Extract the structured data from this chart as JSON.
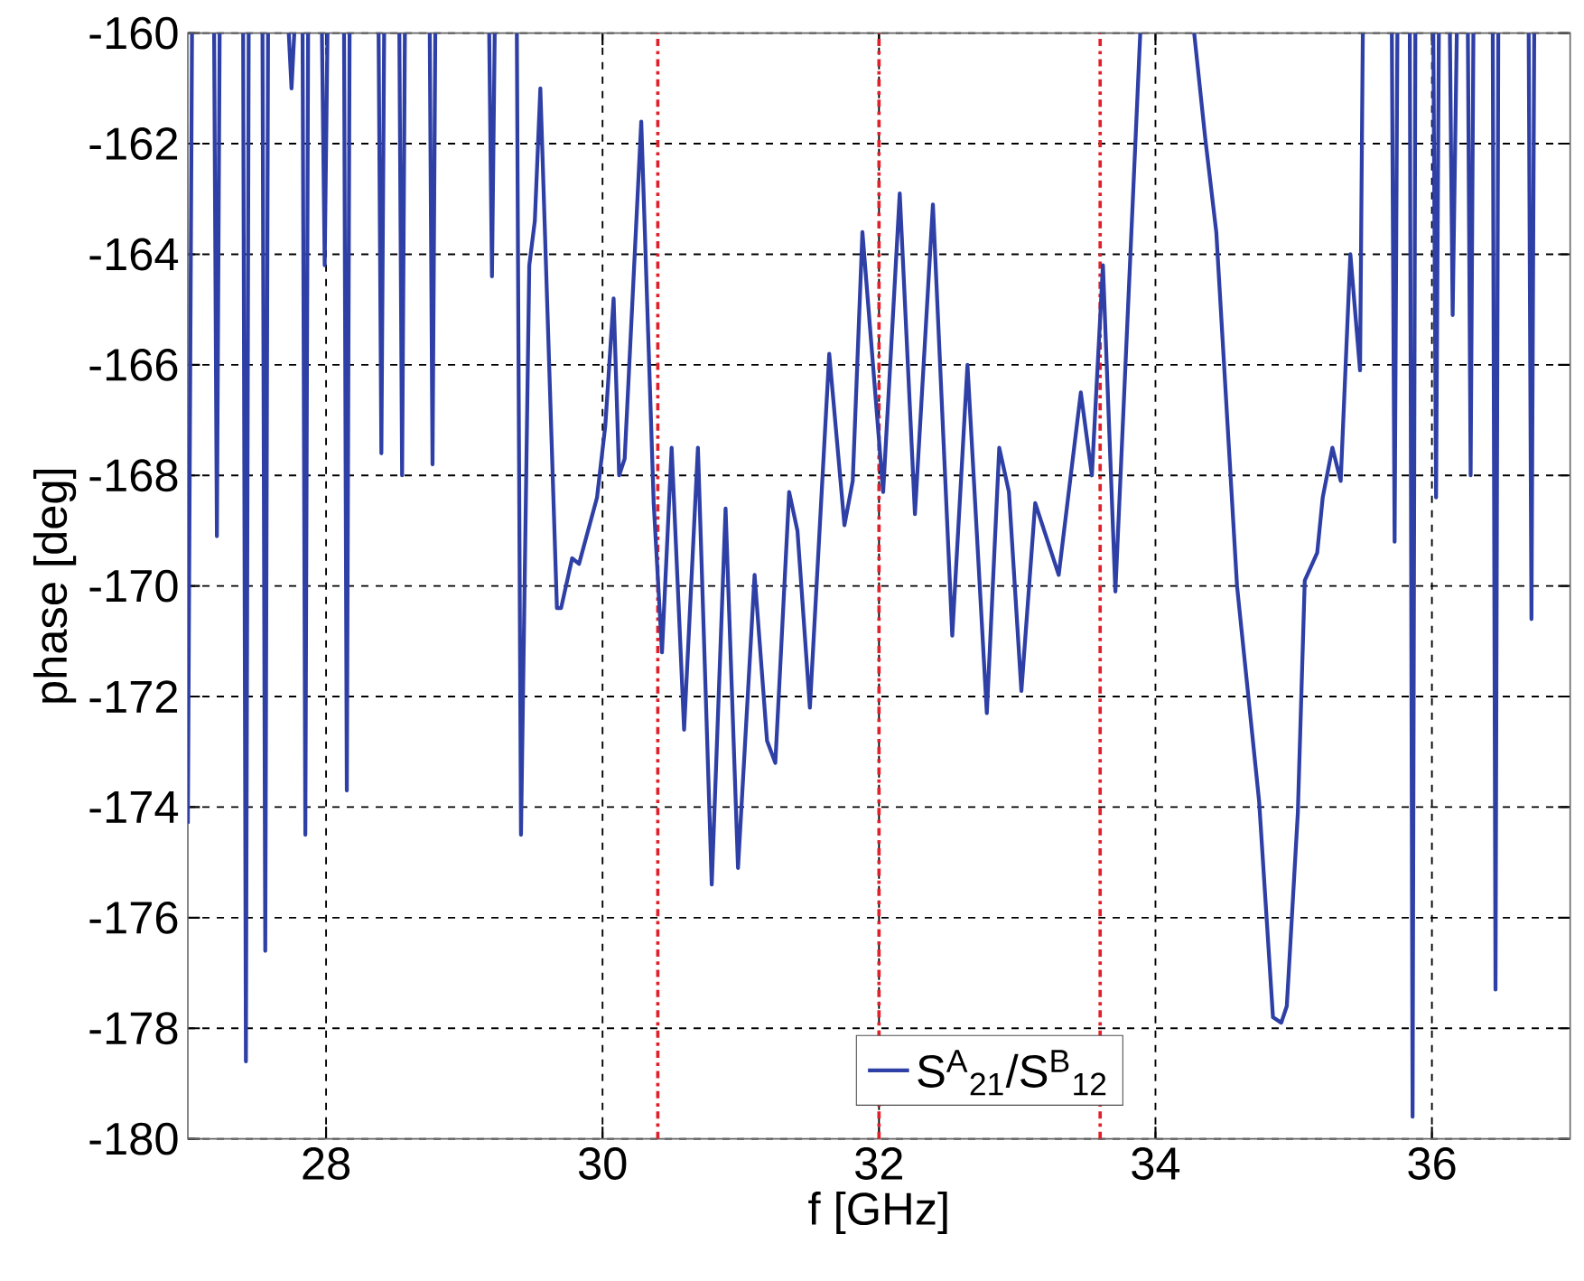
{
  "chart_data": {
    "type": "line",
    "xlabel": "f [GHz]",
    "ylabel": "phase [deg]",
    "xlim": [
      27,
      37
    ],
    "ylim": [
      -180,
      -160
    ],
    "xticks": [
      28,
      30,
      32,
      34,
      36
    ],
    "yticks": [
      -180,
      -178,
      -176,
      -174,
      -172,
      -170,
      -168,
      -166,
      -164,
      -162,
      -160
    ],
    "grid": true,
    "legend": "bottom",
    "marker": "none",
    "line_style": "solid",
    "ref_lines": [
      {
        "axis": "x",
        "value": 30.4,
        "color": "#e0202a",
        "line_style": "dashdot"
      },
      {
        "axis": "x",
        "value": 32,
        "color": "#e0202a",
        "line_style": "dashdot"
      },
      {
        "axis": "x",
        "value": 33.6,
        "color": "#e0202a",
        "line_style": "dashdot"
      }
    ],
    "series": [
      {
        "name": "S$^{A}$$_{21}$/S$^{B}$$_{12}$",
        "color": "#2e3fa6",
        "x": [
          27.0,
          27.03,
          27.1,
          27.19,
          27.21,
          27.23,
          27.3,
          27.4,
          27.42,
          27.44,
          27.49,
          27.54,
          27.56,
          27.58,
          27.65,
          27.73,
          27.75,
          27.77,
          27.8,
          27.83,
          27.85,
          27.87,
          27.93,
          27.97,
          27.99,
          28.01,
          28.07,
          28.13,
          28.15,
          28.17,
          28.28,
          28.38,
          28.4,
          28.42,
          28.48,
          28.53,
          28.55,
          28.57,
          28.67,
          28.75,
          28.77,
          28.79,
          29.0,
          29.18,
          29.2,
          29.22,
          29.3,
          29.38,
          29.41,
          29.47,
          29.51,
          29.55,
          29.67,
          29.7,
          29.78,
          29.83,
          29.96,
          30.02,
          30.08,
          30.12,
          30.16,
          30.28,
          30.37,
          30.43,
          30.5,
          30.59,
          30.69,
          30.79,
          30.89,
          30.98,
          31.1,
          31.19,
          31.25,
          31.35,
          31.41,
          31.5,
          31.64,
          31.75,
          31.81,
          31.88,
          32.03,
          32.15,
          32.26,
          32.39,
          32.53,
          32.64,
          32.78,
          32.87,
          32.94,
          33.03,
          33.13,
          33.3,
          33.46,
          33.54,
          33.62,
          33.71,
          33.89,
          34.1,
          34.28,
          34.36,
          34.44,
          34.59,
          34.75,
          34.85,
          34.91,
          34.95,
          35.03,
          35.08,
          35.17,
          35.21,
          35.28,
          35.34,
          35.41,
          35.48,
          35.5,
          35.6,
          35.71,
          35.73,
          35.75,
          35.8,
          35.84,
          35.86,
          35.88,
          35.95,
          36.01,
          36.03,
          36.05,
          36.1,
          36.13,
          36.15,
          36.18,
          36.22,
          36.26,
          36.28,
          36.3,
          36.38,
          36.44,
          36.46,
          36.48,
          36.6,
          36.7,
          36.72,
          36.74
        ],
        "values": [
          -174.3,
          -160,
          null,
          -160,
          -169.1,
          -160,
          null,
          -160,
          -178.6,
          -160,
          null,
          -160,
          -176.6,
          -160,
          null,
          -160,
          -161.0,
          -160,
          null,
          -160,
          -174.5,
          -160,
          null,
          -160,
          -164.2,
          -160,
          null,
          -160,
          -173.7,
          -160,
          null,
          -160,
          -167.6,
          -160,
          null,
          -160,
          -168.0,
          -160,
          null,
          -160,
          -167.8,
          -160,
          null,
          -160,
          -164.4,
          -160,
          null,
          -160,
          -174.5,
          -164.2,
          -163.4,
          -161.0,
          -170.4,
          -170.4,
          -169.5,
          -169.6,
          -168.4,
          -167.1,
          -164.8,
          -168.0,
          -167.7,
          -161.6,
          -168.5,
          -171.2,
          -167.5,
          -172.6,
          -167.5,
          -175.4,
          -168.6,
          -175.1,
          -169.8,
          -172.8,
          -173.2,
          -168.3,
          -169.0,
          -172.2,
          -165.8,
          -168.9,
          -168.1,
          -163.6,
          -168.3,
          -162.9,
          -168.7,
          -163.1,
          -170.9,
          -166.0,
          -172.3,
          -167.5,
          -168.3,
          -171.9,
          -168.5,
          -169.8,
          -166.5,
          -168.0,
          -164.2,
          -170.1,
          -160,
          null,
          -160,
          -161.9,
          -163.6,
          -170.0,
          -173.9,
          -177.8,
          -177.9,
          -177.6,
          -174.1,
          -169.9,
          -169.4,
          -168.4,
          -167.5,
          -168.1,
          -164.0,
          -166.1,
          -160,
          null,
          -160,
          -169.2,
          -160,
          null,
          -160,
          -179.6,
          -160,
          null,
          -160,
          -168.4,
          -160,
          null,
          -160,
          -165.1,
          -160,
          null,
          -160,
          -168.0,
          -160,
          null,
          -160,
          -177.3,
          -160,
          null,
          -160,
          -170.6,
          -160
        ]
      }
    ]
  }
}
